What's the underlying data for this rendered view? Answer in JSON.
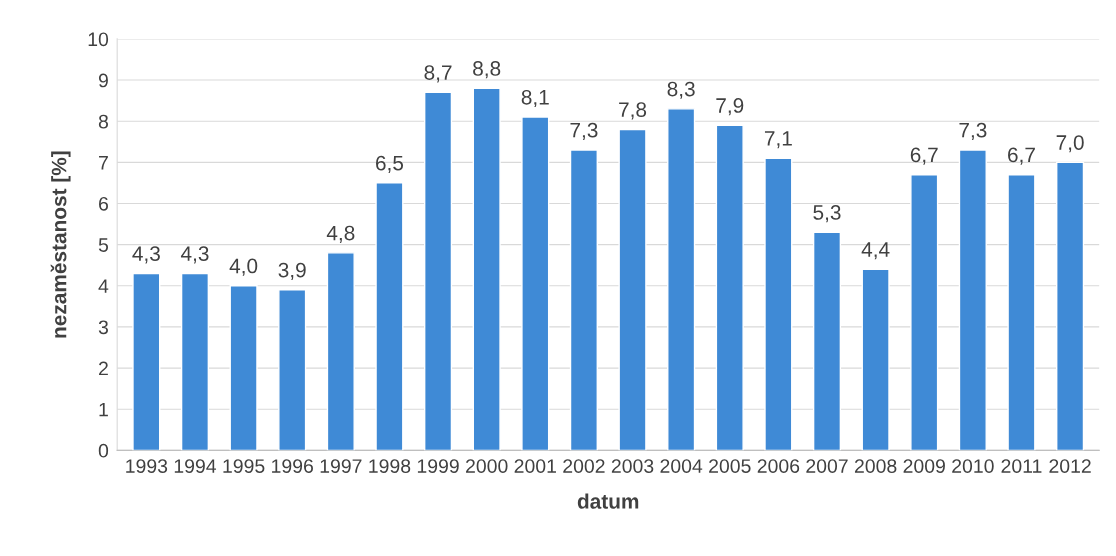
{
  "chart_data": {
    "type": "bar",
    "categories": [
      "1993",
      "1994",
      "1995",
      "1996",
      "1997",
      "1998",
      "1999",
      "2000",
      "2001",
      "2002",
      "2003",
      "2004",
      "2005",
      "2006",
      "2007",
      "2008",
      "2009",
      "2010",
      "2011",
      "2012"
    ],
    "values": [
      4.3,
      4.3,
      4.0,
      3.9,
      4.8,
      6.5,
      8.7,
      8.8,
      8.1,
      7.3,
      7.8,
      8.3,
      7.9,
      7.1,
      5.3,
      4.4,
      6.7,
      7.3,
      6.7,
      7.0
    ],
    "value_labels": [
      "4,3",
      "4,3",
      "4,0",
      "3,9",
      "4,8",
      "6,5",
      "8,7",
      "8,8",
      "8,1",
      "7,3",
      "7,8",
      "8,3",
      "7,9",
      "7,1",
      "5,3",
      "4,4",
      "6,7",
      "7,3",
      "6,7",
      "7,0"
    ],
    "color": "#3f8ad6",
    "xlabel": "datum",
    "ylabel": "nezaměstanost [%]",
    "ylim": [
      0,
      10
    ],
    "yticks": [
      0,
      1,
      2,
      3,
      4,
      5,
      6,
      7,
      8,
      9,
      10
    ],
    "grid": "y",
    "legend": false
  }
}
